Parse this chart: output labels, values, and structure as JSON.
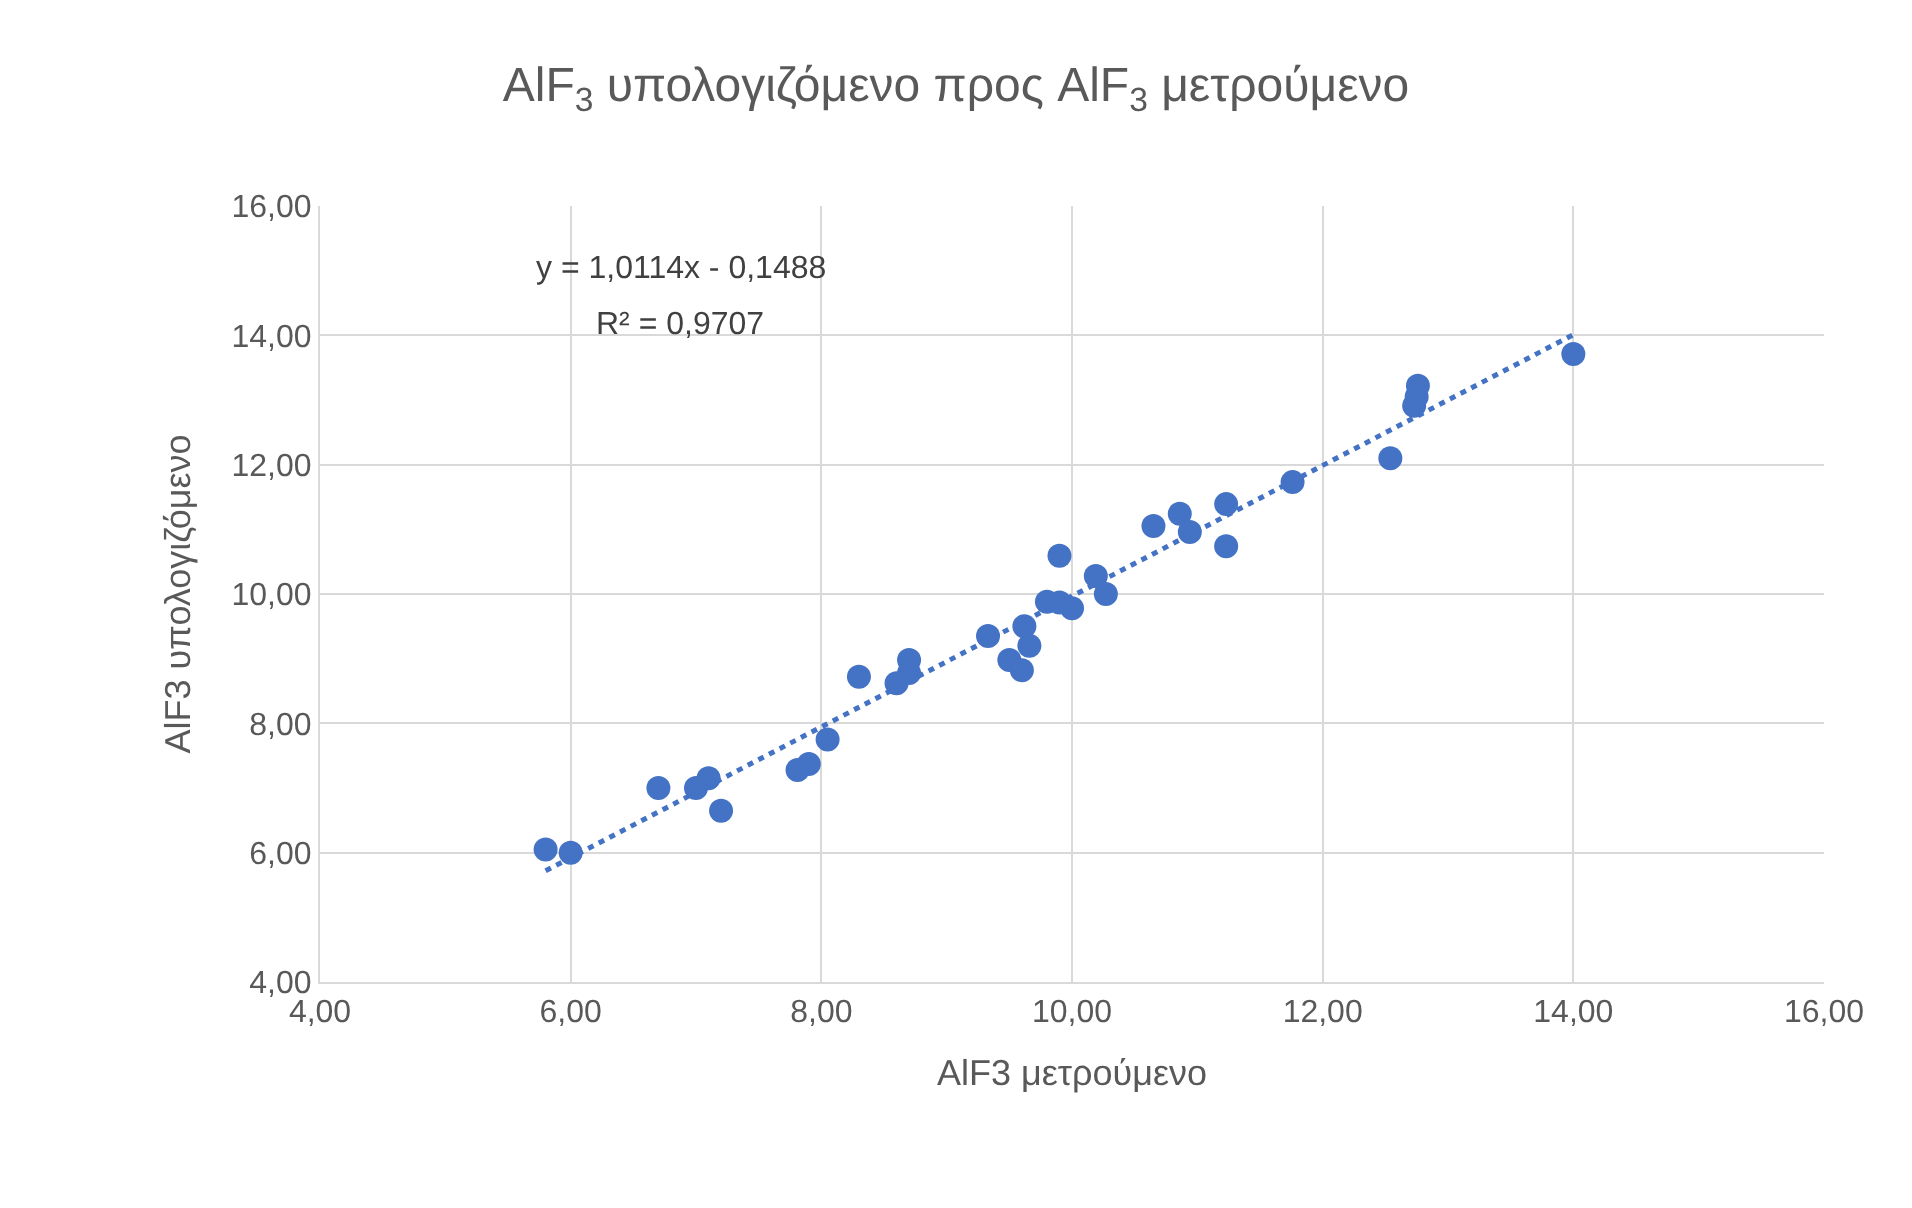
{
  "chart_data": {
    "type": "scatter",
    "title": "AlF$_{3}$ υπολογιζόμενο προς AlF$_{3}$ μετρούμενο",
    "xlabel": "AlF3 μετρούμενο",
    "ylabel": "AlF3 υπολογιζόμενο",
    "annotations": [
      "y = 1,0114x - 0,1488",
      "R² = 0,9707"
    ],
    "series": [
      {
        "color": "#4472c4",
        "marker": "circle",
        "x": [
          5.8,
          6.0,
          6.7,
          7.0,
          7.1,
          7.2,
          7.81,
          7.9,
          8.05,
          8.3,
          8.6,
          8.7,
          8.7,
          9.33,
          9.5,
          9.6,
          9.62,
          9.66,
          9.8,
          9.9,
          10.0,
          9.9,
          10.19,
          10.27,
          10.65,
          10.86,
          10.94,
          11.23,
          11.23,
          11.76,
          12.54,
          12.73,
          12.75,
          12.76,
          14.0
        ],
        "values": [
          6.05,
          6.0,
          7.0,
          7.0,
          7.15,
          6.65,
          7.28,
          7.37,
          7.75,
          8.72,
          8.62,
          8.78,
          8.98,
          9.35,
          8.98,
          8.82,
          9.5,
          9.2,
          9.88,
          9.87,
          9.78,
          10.59,
          10.28,
          10.0,
          11.05,
          11.24,
          10.96,
          11.39,
          10.74,
          11.73,
          12.1,
          12.91,
          13.05,
          13.22,
          13.71
        ]
      },
      {
        "type": "line",
        "color": "#4472c4",
        "line_style": "dotted",
        "marker": "none",
        "x": [
          5.8,
          14.0
        ],
        "values": [
          5.72,
          14.01
        ]
      }
    ],
    "xlim": [
      4,
      16
    ],
    "ylim": [
      4,
      16
    ],
    "xticks": [
      {
        "value": 4,
        "label": "4,00"
      },
      {
        "value": 6,
        "label": "6,00"
      },
      {
        "value": 8,
        "label": "8,00"
      },
      {
        "value": 10,
        "label": "10,00"
      },
      {
        "value": 12,
        "label": "12,00"
      },
      {
        "value": 14,
        "label": "14,00"
      },
      {
        "value": 16,
        "label": "16,00"
      }
    ],
    "yticks": [
      {
        "value": 4,
        "label": "4,00"
      },
      {
        "value": 6,
        "label": "6,00"
      },
      {
        "value": 8,
        "label": "8,00"
      },
      {
        "value": 10,
        "label": "10,00"
      },
      {
        "value": 12,
        "label": "12,00"
      },
      {
        "value": 14,
        "label": "14,00"
      },
      {
        "value": 16,
        "label": "16,00"
      }
    ],
    "grid": true
  }
}
